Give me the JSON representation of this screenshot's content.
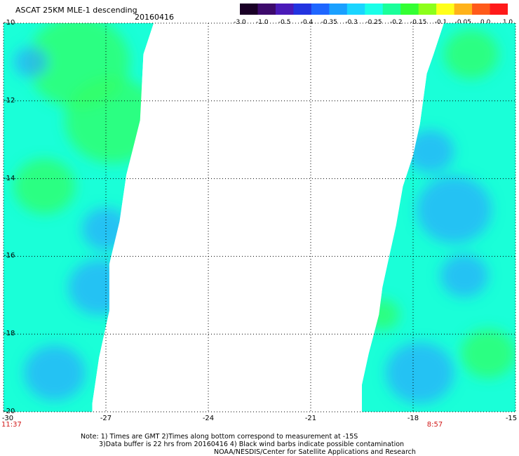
{
  "header": {
    "title": "ASCAT 25KM MLE-1 descending",
    "date": "20160416"
  },
  "colorbar": {
    "labels": [
      "-3.0",
      "-1.0",
      "-0.5",
      "-0.4",
      "-0.35",
      "-0.3",
      "-0.25",
      "-0.2",
      "-0.15",
      "-0.1",
      "-0.05",
      "0.0",
      "1.0"
    ],
    "colors": [
      "#1a0026",
      "#3d0a6b",
      "#4a1ab8",
      "#2233e0",
      "#1f66ff",
      "#1aa0ff",
      "#1ad5ff",
      "#1affe8",
      "#1aff9a",
      "#33ff33",
      "#8cff1a",
      "#ffff1a",
      "#ffb21a",
      "#ff5a1a",
      "#ff1a1a"
    ]
  },
  "map": {
    "lon_range": [
      -30,
      -15
    ],
    "lat_range": [
      -20,
      -10
    ],
    "lon_ticks": [
      {
        "value": -30,
        "label": "-30"
      },
      {
        "value": -27,
        "label": "-27"
      },
      {
        "value": -24,
        "label": "-24"
      },
      {
        "value": -21,
        "label": "-21"
      },
      {
        "value": -18,
        "label": "-18"
      },
      {
        "value": -15,
        "label": "-15"
      }
    ],
    "lat_ticks": [
      {
        "value": -10,
        "label": "-10"
      },
      {
        "value": -12,
        "label": "-12"
      },
      {
        "value": -14,
        "label": "-14"
      },
      {
        "value": -16,
        "label": "-16"
      },
      {
        "value": -18,
        "label": "-18"
      },
      {
        "value": -20,
        "label": "-20"
      }
    ],
    "time_labels": [
      {
        "lon": -30,
        "label": "11:37"
      },
      {
        "lon": -17.8,
        "label": "8:57"
      }
    ],
    "swaths": [
      {
        "name": "west-swath",
        "edge": [
          [
            -30,
            -10
          ],
          [
            -25.6,
            -10
          ],
          [
            -25.9,
            -10.8
          ],
          [
            -26.0,
            -12.5
          ],
          [
            -26.4,
            -13.9
          ],
          [
            -26.6,
            -15.1
          ],
          [
            -26.9,
            -16.2
          ],
          [
            -26.9,
            -17.4
          ],
          [
            -27.2,
            -18.6
          ],
          [
            -27.4,
            -19.8
          ],
          [
            -27.4,
            -20
          ],
          [
            -30,
            -20
          ]
        ]
      },
      {
        "name": "east-swath",
        "edge": [
          [
            -17.1,
            -10
          ],
          [
            -15,
            -10
          ],
          [
            -15,
            -20
          ],
          [
            -19.5,
            -20
          ],
          [
            -19.5,
            -19.3
          ],
          [
            -19.3,
            -18.5
          ],
          [
            -19.0,
            -17.5
          ],
          [
            -18.9,
            -16.8
          ],
          [
            -18.7,
            -16.0
          ],
          [
            -18.5,
            -15.2
          ],
          [
            -18.3,
            -14.2
          ],
          [
            -18.0,
            -13.4
          ],
          [
            -17.8,
            -12.6
          ],
          [
            -17.6,
            -11.3
          ],
          [
            -17.4,
            -10.8
          ],
          [
            -17.1,
            -10
          ]
        ]
      }
    ],
    "blobs": [
      {
        "lon": -26.8,
        "lat": -12.5,
        "r": 1.4,
        "level": "green"
      },
      {
        "lon": -27.8,
        "lat": -11.0,
        "r": 1.5,
        "level": "green"
      },
      {
        "lon": -28.8,
        "lat": -14.2,
        "r": 0.9,
        "level": "green"
      },
      {
        "lon": -27.2,
        "lat": -16.8,
        "r": 0.9,
        "level": "blue"
      },
      {
        "lon": -27.0,
        "lat": -15.3,
        "r": 0.7,
        "level": "blue"
      },
      {
        "lon": -28.5,
        "lat": -19.0,
        "r": 0.9,
        "level": "blue"
      },
      {
        "lon": -29.2,
        "lat": -11.0,
        "r": 0.5,
        "level": "blue"
      },
      {
        "lon": -16.8,
        "lat": -14.8,
        "r": 1.1,
        "level": "blue"
      },
      {
        "lon": -17.5,
        "lat": -13.3,
        "r": 0.7,
        "level": "blue"
      },
      {
        "lon": -17.8,
        "lat": -19.0,
        "r": 1.0,
        "level": "blue"
      },
      {
        "lon": -16.5,
        "lat": -16.5,
        "r": 0.7,
        "level": "blue"
      },
      {
        "lon": -16.3,
        "lat": -10.8,
        "r": 0.8,
        "level": "green"
      },
      {
        "lon": -15.8,
        "lat": -18.5,
        "r": 0.8,
        "level": "green"
      },
      {
        "lon": -18.9,
        "lat": -17.5,
        "r": 0.5,
        "level": "green"
      }
    ]
  },
  "notes": [
    "Note: 1) Times are GMT 2)Times along bottom correspond to measurement at -15S",
    "3)Data buffer is 22 hrs from 20160416 4) Black wind barbs indicate possible contamination",
    "NOAA/NESDIS/Center for Satellite Applications and Research"
  ]
}
